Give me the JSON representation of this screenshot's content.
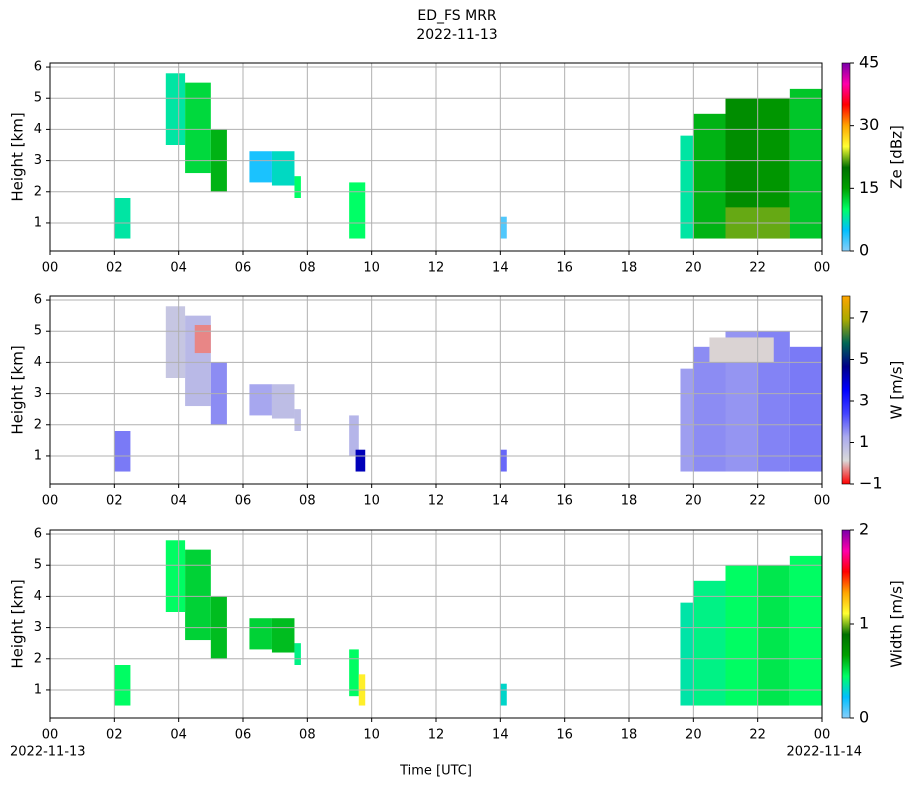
{
  "figure": {
    "title": "ED_FS MRR",
    "subtitle": "2022-11-13",
    "xlabel": "Time [UTC]",
    "start_label": "2022-11-13",
    "end_label": "2022-11-14"
  },
  "chart_data": [
    {
      "type": "heatmap",
      "ylabel": "Height [km]",
      "colorbar_label": "Ze [dBz]",
      "xlim": [
        0,
        24
      ],
      "ylim": [
        0.1,
        6.13
      ],
      "clim": [
        0,
        45
      ],
      "grid": true,
      "colors": [
        "#87cefa",
        "#00bfff",
        "#00ff66",
        "#00a000",
        "#007000",
        "#ffff33",
        "#ffa500",
        "#ff0000",
        "#ff00aa",
        "#7a00aa"
      ],
      "xticks": [
        {
          "value": 0,
          "label": "00"
        },
        {
          "value": 2,
          "label": "02"
        },
        {
          "value": 4,
          "label": "04"
        },
        {
          "value": 6,
          "label": "06"
        },
        {
          "value": 8,
          "label": "08"
        },
        10,
        12,
        14,
        16,
        18,
        20,
        22,
        {
          "value": 24,
          "label": "00"
        }
      ],
      "yticks": [
        1,
        2,
        3,
        4,
        5,
        6
      ],
      "cticks": [
        0,
        15,
        30,
        45
      ],
      "cells": [
        {
          "x": [
            2.0,
            2.5
          ],
          "y": [
            0.5,
            1.8
          ],
          "value": 8
        },
        {
          "x": [
            3.6,
            4.2
          ],
          "y": [
            3.5,
            5.8
          ],
          "value": 8
        },
        {
          "x": [
            4.2,
            5.0
          ],
          "y": [
            2.6,
            5.5
          ],
          "value": 12
        },
        {
          "x": [
            5.0,
            5.5
          ],
          "y": [
            2.0,
            4.0
          ],
          "value": 14
        },
        {
          "x": [
            6.2,
            6.9
          ],
          "y": [
            2.3,
            3.3
          ],
          "value": 4
        },
        {
          "x": [
            6.9,
            7.6
          ],
          "y": [
            2.2,
            3.3
          ],
          "value": 7
        },
        {
          "x": [
            7.6,
            7.8
          ],
          "y": [
            1.8,
            2.5
          ],
          "value": 10
        },
        {
          "x": [
            9.3,
            9.8
          ],
          "y": [
            0.5,
            2.3
          ],
          "value": 10
        },
        {
          "x": [
            14.0,
            14.2
          ],
          "y": [
            0.5,
            1.2
          ],
          "value": 2
        },
        {
          "x": [
            19.6,
            20.0
          ],
          "y": [
            0.5,
            3.8
          ],
          "value": 8
        },
        {
          "x": [
            20.0,
            21.0
          ],
          "y": [
            0.5,
            4.5
          ],
          "value": 14
        },
        {
          "x": [
            21.0,
            22.0
          ],
          "y": [
            0.5,
            5.0
          ],
          "value": 17
        },
        {
          "x": [
            22.0,
            23.0
          ],
          "y": [
            0.5,
            5.0
          ],
          "value": 16
        },
        {
          "x": [
            23.0,
            24.0
          ],
          "y": [
            0.5,
            5.3
          ],
          "value": 13
        },
        {
          "x": [
            21.0,
            23.0
          ],
          "y": [
            0.5,
            1.5
          ],
          "value": 22
        }
      ]
    },
    {
      "type": "heatmap",
      "ylabel": "Height [km]",
      "colorbar_label": "W [m/s]",
      "xlim": [
        0,
        24
      ],
      "ylim": [
        0.1,
        6.13
      ],
      "clim": [
        -1,
        8.06
      ],
      "grid": true,
      "colors": [
        "#ff0000",
        "#d9d9d9",
        "#aaaaee",
        "#4444ff",
        "#0000ff",
        "#000088",
        "#006655",
        "#aaaa00",
        "#ffa500"
      ],
      "xticks": [
        {
          "value": 0,
          "label": "00"
        },
        {
          "value": 2,
          "label": "02"
        },
        {
          "value": 4,
          "label": "04"
        },
        {
          "value": 6,
          "label": "06"
        },
        {
          "value": 8,
          "label": "08"
        },
        10,
        12,
        14,
        16,
        18,
        20,
        22,
        {
          "value": 24,
          "label": "00"
        }
      ],
      "yticks": [
        1,
        2,
        3,
        4,
        5,
        6
      ],
      "cticks": [
        {
          "value": -1,
          "label": "−1"
        },
        1,
        3,
        5,
        7
      ],
      "cells": [
        {
          "x": [
            2.0,
            2.5
          ],
          "y": [
            0.5,
            1.8
          ],
          "value": 1.8
        },
        {
          "x": [
            3.6,
            4.2
          ],
          "y": [
            3.5,
            5.8
          ],
          "value": 0.6
        },
        {
          "x": [
            4.2,
            5.0
          ],
          "y": [
            2.6,
            5.5
          ],
          "value": 0.9
        },
        {
          "x": [
            5.0,
            5.5
          ],
          "y": [
            2.0,
            4.0
          ],
          "value": 1.6
        },
        {
          "x": [
            4.5,
            5.0
          ],
          "y": [
            4.3,
            5.2
          ],
          "value": -0.3
        },
        {
          "x": [
            6.2,
            6.9
          ],
          "y": [
            2.3,
            3.3
          ],
          "value": 1.3
        },
        {
          "x": [
            6.9,
            7.6
          ],
          "y": [
            2.2,
            3.3
          ],
          "value": 0.8
        },
        {
          "x": [
            7.6,
            7.8
          ],
          "y": [
            1.8,
            2.5
          ],
          "value": 0.8
        },
        {
          "x": [
            9.3,
            9.6
          ],
          "y": [
            1.0,
            2.3
          ],
          "value": 1.0
        },
        {
          "x": [
            9.5,
            9.8
          ],
          "y": [
            0.5,
            1.2
          ],
          "value": 4.2
        },
        {
          "x": [
            14.0,
            14.2
          ],
          "y": [
            0.5,
            1.2
          ],
          "value": 2
        },
        {
          "x": [
            19.6,
            20.0
          ],
          "y": [
            0.5,
            3.8
          ],
          "value": 1.4
        },
        {
          "x": [
            20.0,
            21.0
          ],
          "y": [
            0.5,
            4.5
          ],
          "value": 1.6
        },
        {
          "x": [
            21.0,
            22.0
          ],
          "y": [
            0.5,
            5.0
          ],
          "value": 1.5
        },
        {
          "x": [
            22.0,
            23.0
          ],
          "y": [
            0.5,
            5.0
          ],
          "value": 1.7
        },
        {
          "x": [
            23.0,
            24.0
          ],
          "y": [
            0.5,
            4.5
          ],
          "value": 1.8
        },
        {
          "x": [
            20.5,
            22.5
          ],
          "y": [
            4.0,
            4.8
          ],
          "value": 0.1
        }
      ]
    },
    {
      "type": "heatmap",
      "ylabel": "Height [km]",
      "colorbar_label": "Width [m/s]",
      "xlim": [
        0,
        24
      ],
      "ylim": [
        0.1,
        6.13
      ],
      "clim": [
        0,
        2
      ],
      "grid": true,
      "colors": [
        "#87cefa",
        "#00bfff",
        "#00ff66",
        "#00a000",
        "#007000",
        "#ffff33",
        "#ffa500",
        "#ff0000",
        "#ff00aa",
        "#7a00aa"
      ],
      "xticks": [
        {
          "value": 0,
          "label": "00"
        },
        {
          "value": 2,
          "label": "02"
        },
        {
          "value": 4,
          "label": "04"
        },
        {
          "value": 6,
          "label": "06"
        },
        {
          "value": 8,
          "label": "08"
        },
        10,
        12,
        14,
        16,
        18,
        20,
        22,
        {
          "value": 24,
          "label": "00"
        }
      ],
      "yticks": [
        1,
        2,
        3,
        4,
        5,
        6
      ],
      "cticks": [
        0,
        1,
        2
      ],
      "cells": [
        {
          "x": [
            2.0,
            2.5
          ],
          "y": [
            0.5,
            1.8
          ],
          "value": 0.45
        },
        {
          "x": [
            3.6,
            4.2
          ],
          "y": [
            3.5,
            5.8
          ],
          "value": 0.45
        },
        {
          "x": [
            4.2,
            5.0
          ],
          "y": [
            2.6,
            5.5
          ],
          "value": 0.55
        },
        {
          "x": [
            5.0,
            5.5
          ],
          "y": [
            2.0,
            4.0
          ],
          "value": 0.6
        },
        {
          "x": [
            6.2,
            6.9
          ],
          "y": [
            2.3,
            3.3
          ],
          "value": 0.55
        },
        {
          "x": [
            6.9,
            7.6
          ],
          "y": [
            2.2,
            3.3
          ],
          "value": 0.6
        },
        {
          "x": [
            7.6,
            7.8
          ],
          "y": [
            1.8,
            2.5
          ],
          "value": 0.4
        },
        {
          "x": [
            9.3,
            9.6
          ],
          "y": [
            0.8,
            2.3
          ],
          "value": 0.45
        },
        {
          "x": [
            9.6,
            9.8
          ],
          "y": [
            0.5,
            1.5
          ],
          "value": 1.15
        },
        {
          "x": [
            14.0,
            14.2
          ],
          "y": [
            0.5,
            1.2
          ],
          "value": 0.3
        },
        {
          "x": [
            19.6,
            20.0
          ],
          "y": [
            0.5,
            3.8
          ],
          "value": 0.35
        },
        {
          "x": [
            20.0,
            21.0
          ],
          "y": [
            0.5,
            4.5
          ],
          "value": 0.4
        },
        {
          "x": [
            21.0,
            22.0
          ],
          "y": [
            0.5,
            5.0
          ],
          "value": 0.45
        },
        {
          "x": [
            22.0,
            23.0
          ],
          "y": [
            0.5,
            5.0
          ],
          "value": 0.5
        },
        {
          "x": [
            23.0,
            24.0
          ],
          "y": [
            0.5,
            5.3
          ],
          "value": 0.45
        }
      ]
    }
  ]
}
